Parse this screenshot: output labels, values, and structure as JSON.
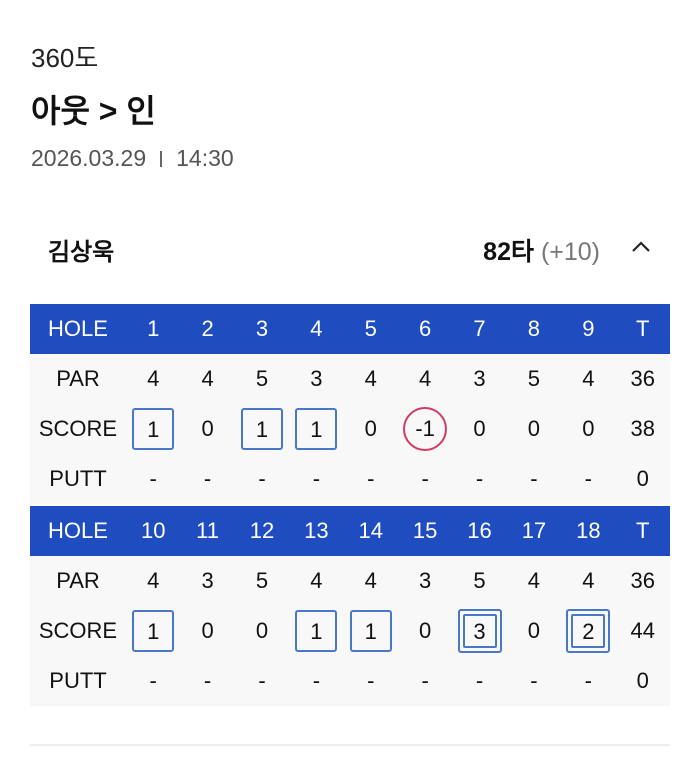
{
  "course": "360도",
  "route": "아웃 > 인",
  "date": "2026.03.29",
  "time": "14:30",
  "player": {
    "name": "김상욱",
    "total": "82타",
    "diff": "(+10)",
    "collapse_icon": "chevron-up-icon"
  },
  "colors": {
    "header": "#1f4dbf",
    "bogey": "#4a78c9",
    "birdie": "#d23a64"
  },
  "tables": [
    {
      "labels": [
        "HOLE",
        "PAR",
        "SCORE",
        "PUTT"
      ],
      "holes": [
        "1",
        "2",
        "3",
        "4",
        "5",
        "6",
        "7",
        "8",
        "9",
        "T"
      ],
      "par": [
        "4",
        "4",
        "5",
        "3",
        "4",
        "4",
        "3",
        "5",
        "4",
        "36"
      ],
      "score": [
        "1",
        "0",
        "1",
        "1",
        "0",
        "-1",
        "0",
        "0",
        "0",
        "38"
      ],
      "marks": [
        "box",
        "",
        "box",
        "box",
        "",
        "circle",
        "",
        "",
        "",
        ""
      ],
      "putt": [
        "-",
        "-",
        "-",
        "-",
        "-",
        "-",
        "-",
        "-",
        "-",
        "0"
      ]
    },
    {
      "labels": [
        "HOLE",
        "PAR",
        "SCORE",
        "PUTT"
      ],
      "holes": [
        "10",
        "11",
        "12",
        "13",
        "14",
        "15",
        "16",
        "17",
        "18",
        "T"
      ],
      "par": [
        "4",
        "3",
        "5",
        "4",
        "4",
        "3",
        "5",
        "4",
        "4",
        "36"
      ],
      "score": [
        "1",
        "0",
        "0",
        "1",
        "1",
        "0",
        "3",
        "0",
        "2",
        "44"
      ],
      "marks": [
        "box",
        "",
        "",
        "box",
        "box",
        "",
        "double-box",
        "",
        "double-box",
        ""
      ],
      "putt": [
        "-",
        "-",
        "-",
        "-",
        "-",
        "-",
        "-",
        "-",
        "-",
        "0"
      ]
    }
  ]
}
